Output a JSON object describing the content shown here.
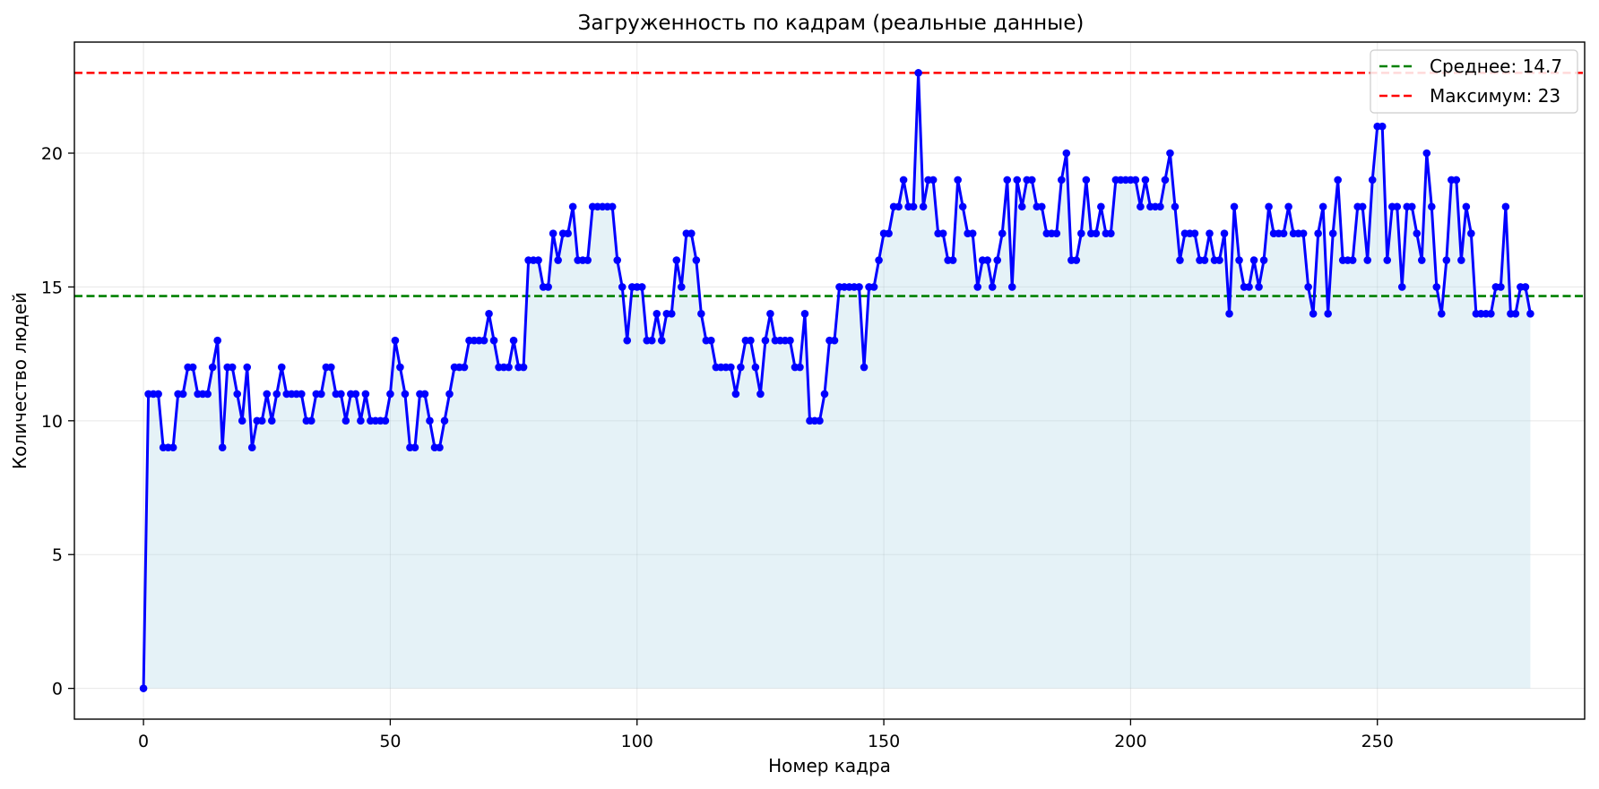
{
  "chart_data": {
    "type": "line",
    "title": "Загруженность по кадрам (реальные данные)",
    "xlabel": "Номер кадра",
    "ylabel": "Количество людей",
    "xlim": [
      -14,
      292
    ],
    "ylim": [
      -1.15,
      24.15
    ],
    "xticks": [
      0,
      50,
      100,
      150,
      200,
      250
    ],
    "yticks": [
      0,
      5,
      10,
      15,
      20
    ],
    "grid": true,
    "legend_position": "top-right",
    "series": [
      {
        "name": "",
        "color": "#0000ff",
        "fill_color": "#add8e6",
        "marker": "circle",
        "x_start": 0,
        "x_step": 1,
        "values": [
          0,
          11,
          11,
          11,
          9,
          9,
          9,
          11,
          11,
          12,
          12,
          11,
          11,
          11,
          12,
          13,
          9,
          12,
          12,
          11,
          10,
          12,
          9,
          10,
          10,
          11,
          10,
          11,
          12,
          11,
          11,
          11,
          11,
          10,
          10,
          11,
          11,
          12,
          12,
          11,
          11,
          10,
          11,
          11,
          10,
          11,
          10,
          10,
          10,
          10,
          11,
          13,
          12,
          11,
          9,
          9,
          11,
          11,
          10,
          9,
          9,
          10,
          11,
          12,
          12,
          12,
          13,
          13,
          13,
          13,
          14,
          13,
          12,
          12,
          12,
          13,
          12,
          12,
          16,
          16,
          16,
          15,
          15,
          17,
          16,
          17,
          17,
          18,
          16,
          16,
          16,
          18,
          18,
          18,
          18,
          18,
          16,
          15,
          13,
          15,
          15,
          15,
          13,
          13,
          14,
          13,
          14,
          14,
          16,
          15,
          17,
          17,
          16,
          14,
          13,
          13,
          12,
          12,
          12,
          12,
          11,
          12,
          13,
          13,
          12,
          11,
          13,
          14,
          13,
          13,
          13,
          13,
          12,
          12,
          14,
          10,
          10,
          10,
          11,
          13,
          13,
          15,
          15,
          15,
          15,
          15,
          12,
          15,
          15,
          16,
          17,
          17,
          18,
          18,
          19,
          18,
          18,
          23,
          18,
          19,
          19,
          17,
          17,
          16,
          16,
          19,
          18,
          17,
          17,
          15,
          16,
          16,
          15,
          16,
          17,
          19,
          15,
          19,
          18,
          19,
          19,
          18,
          18,
          17,
          17,
          17,
          19,
          20,
          16,
          16,
          17,
          19,
          17,
          17,
          18,
          17,
          17,
          19,
          19,
          19,
          19,
          19,
          18,
          19,
          18,
          18,
          18,
          19,
          20,
          18,
          16,
          17,
          17,
          17,
          16,
          16,
          17,
          16,
          16,
          17,
          14,
          18,
          16,
          15,
          15,
          16,
          15,
          16,
          18,
          17,
          17,
          17,
          18,
          17,
          17,
          17,
          15,
          14,
          17,
          18,
          14,
          17,
          19,
          16,
          16,
          16,
          18,
          18,
          16,
          19,
          21,
          21,
          16,
          18,
          18,
          15,
          18,
          18,
          17,
          16,
          20,
          18,
          15,
          14,
          16,
          19,
          19,
          16,
          18,
          17,
          14,
          14,
          14,
          14,
          15,
          15,
          18,
          14,
          14,
          15,
          15,
          14
        ]
      }
    ],
    "reference_lines": [
      {
        "name": "Среднее: 14.7",
        "value": 14.66,
        "color": "#008000",
        "style": "dashed"
      },
      {
        "name": "Максимум: 23",
        "value": 23,
        "color": "#ff0000",
        "style": "dashed"
      }
    ]
  }
}
